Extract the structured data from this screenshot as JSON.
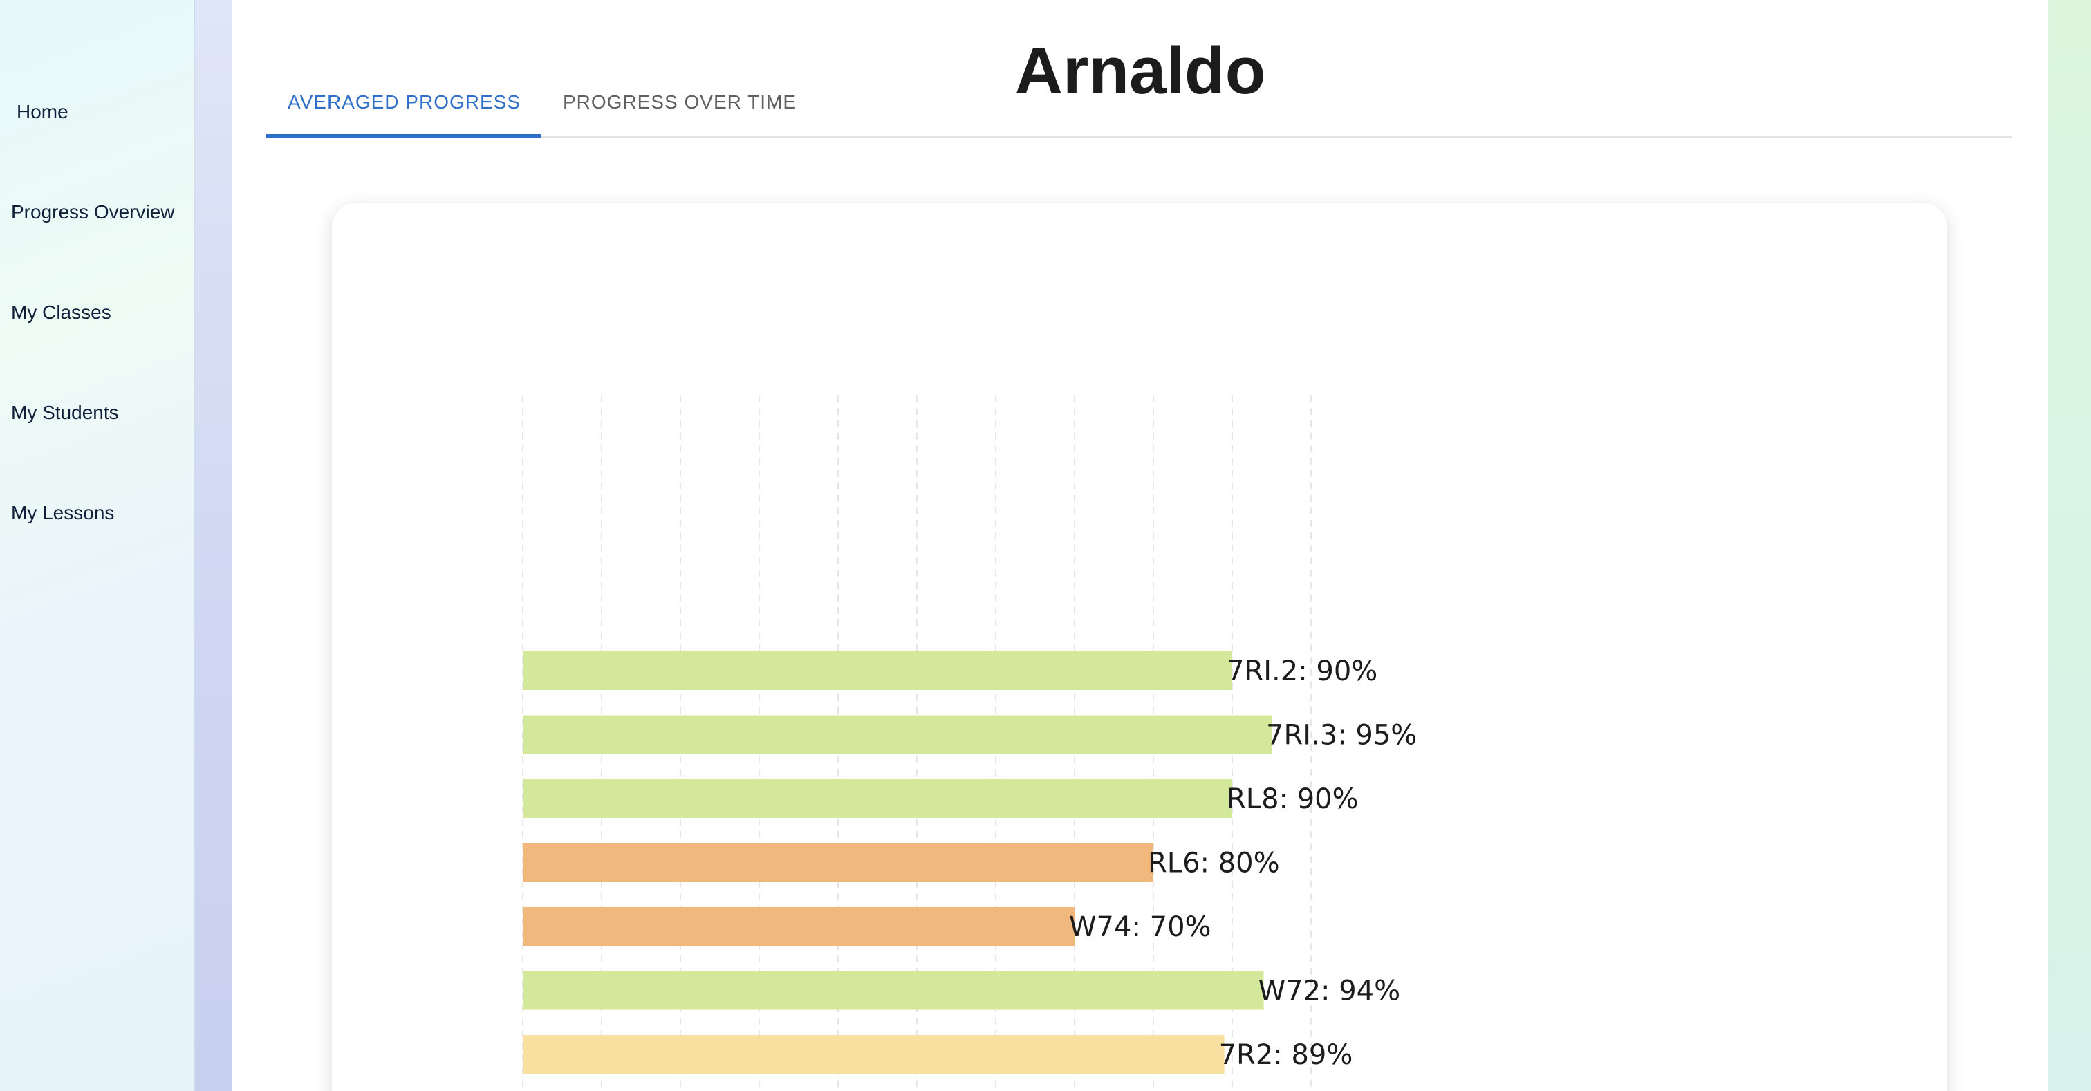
{
  "sidebar": {
    "items": [
      {
        "label": "Home"
      },
      {
        "label": "Progress Overview"
      },
      {
        "label": "My Classes"
      },
      {
        "label": "My Students"
      },
      {
        "label": "My Lessons"
      }
    ]
  },
  "page": {
    "title": "Arnaldo"
  },
  "tabs": [
    {
      "label": "AVERAGED PROGRESS",
      "active": true
    },
    {
      "label": "PROGRESS OVER TIME",
      "active": false
    }
  ],
  "colors": {
    "accent": "#2f6fc8",
    "bar_high": "#d4e89c",
    "bar_mid": "#f0b87d",
    "bar_fair": "#f8e0a0"
  },
  "chart_data": {
    "type": "bar",
    "orientation": "horizontal",
    "xlim": [
      0,
      100
    ],
    "grid": true,
    "bars": [
      {
        "category": "7RI.2",
        "value": 90,
        "label": "7RI.2: 90%",
        "color": "#d4e89c"
      },
      {
        "category": "7RI.3",
        "value": 95,
        "label": "7RI.3: 95%",
        "color": "#d4e89c"
      },
      {
        "category": "RL8",
        "value": 90,
        "label": "RL8: 90%",
        "color": "#d4e89c"
      },
      {
        "category": "RL6",
        "value": 80,
        "label": "RL6: 80%",
        "color": "#f0b87d"
      },
      {
        "category": "W74",
        "value": 70,
        "label": "W74: 70%",
        "color": "#f0b87d"
      },
      {
        "category": "W72",
        "value": 94,
        "label": "W72: 94%",
        "color": "#d4e89c"
      },
      {
        "category": "7R2",
        "value": 89,
        "label": "7R2: 89%",
        "color": "#f8e0a0"
      }
    ]
  }
}
